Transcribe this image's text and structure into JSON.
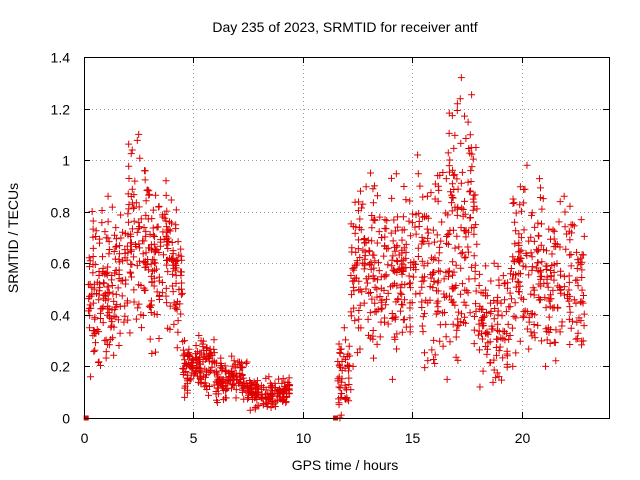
{
  "chart_data": {
    "type": "scatter",
    "title": "Day 235 of 2023, SRMTID for receiver antf",
    "xlabel": "GPS time / hours",
    "ylabel": "SRMTID / TECUs",
    "xlim": [
      0,
      24
    ],
    "ylim": [
      0,
      1.4
    ],
    "xticks": [
      0,
      5,
      10,
      15,
      20
    ],
    "xtick_labels": [
      "0",
      "5",
      "10",
      "15",
      "20"
    ],
    "yticks": [
      0,
      0.2,
      0.4,
      0.6,
      0.8,
      1,
      1.2,
      1.4
    ],
    "ytick_labels": [
      "0",
      "0.2",
      "0.4",
      "0.6",
      "0.8",
      "1",
      "1.2",
      "1.4"
    ],
    "grid": true,
    "marker": "plus",
    "color": "#e00000",
    "square_markers": [
      {
        "x": 0.1,
        "y": 0.0
      },
      {
        "x": 11.5,
        "y": 0.0
      }
    ],
    "segments": [
      {
        "name": "0.2-2h",
        "x_range": [
          0.2,
          2.0
        ],
        "y_min": 0.16,
        "y_max": 0.86,
        "count": 170
      },
      {
        "name": "2-3h",
        "x_range": [
          2.0,
          3.0
        ],
        "y_min": 0.33,
        "y_max": 1.1,
        "count": 90
      },
      {
        "name": "3-4.5h",
        "x_range": [
          3.0,
          4.5
        ],
        "y_min": 0.25,
        "y_max": 0.92,
        "count": 140
      },
      {
        "name": "4.5-6h",
        "x_range": [
          4.5,
          6.0
        ],
        "y_min": 0.08,
        "y_max": 0.32,
        "count": 130
      },
      {
        "name": "6-7.5h",
        "x_range": [
          6.0,
          7.5
        ],
        "y_min": 0.06,
        "y_max": 0.24,
        "count": 120
      },
      {
        "name": "7.5-9.4h",
        "x_range": [
          7.5,
          9.4
        ],
        "y_min": 0.03,
        "y_max": 0.16,
        "count": 150
      },
      {
        "name": "11.6-12.2h",
        "x_range": [
          11.6,
          12.2
        ],
        "y_min": 0.0,
        "y_max": 0.35,
        "count": 50
      },
      {
        "name": "12.2-14h",
        "x_range": [
          12.2,
          14.0
        ],
        "y_min": 0.2,
        "y_max": 0.95,
        "count": 150
      },
      {
        "name": "14-16.5h",
        "x_range": [
          14.0,
          16.5
        ],
        "y_min": 0.15,
        "y_max": 1.02,
        "count": 200
      },
      {
        "name": "16.5-18h",
        "x_range": [
          16.5,
          18.0
        ],
        "y_min": 0.15,
        "y_max": 1.32,
        "count": 150
      },
      {
        "name": "18-19.5h",
        "x_range": [
          18.0,
          19.5
        ],
        "y_min": 0.12,
        "y_max": 0.6,
        "count": 100
      },
      {
        "name": "19.5-21h",
        "x_range": [
          19.5,
          21.0
        ],
        "y_min": 0.2,
        "y_max": 0.98,
        "count": 120
      },
      {
        "name": "21-22.9h",
        "x_range": [
          21.0,
          22.9
        ],
        "y_min": 0.2,
        "y_max": 0.86,
        "count": 130
      }
    ]
  }
}
